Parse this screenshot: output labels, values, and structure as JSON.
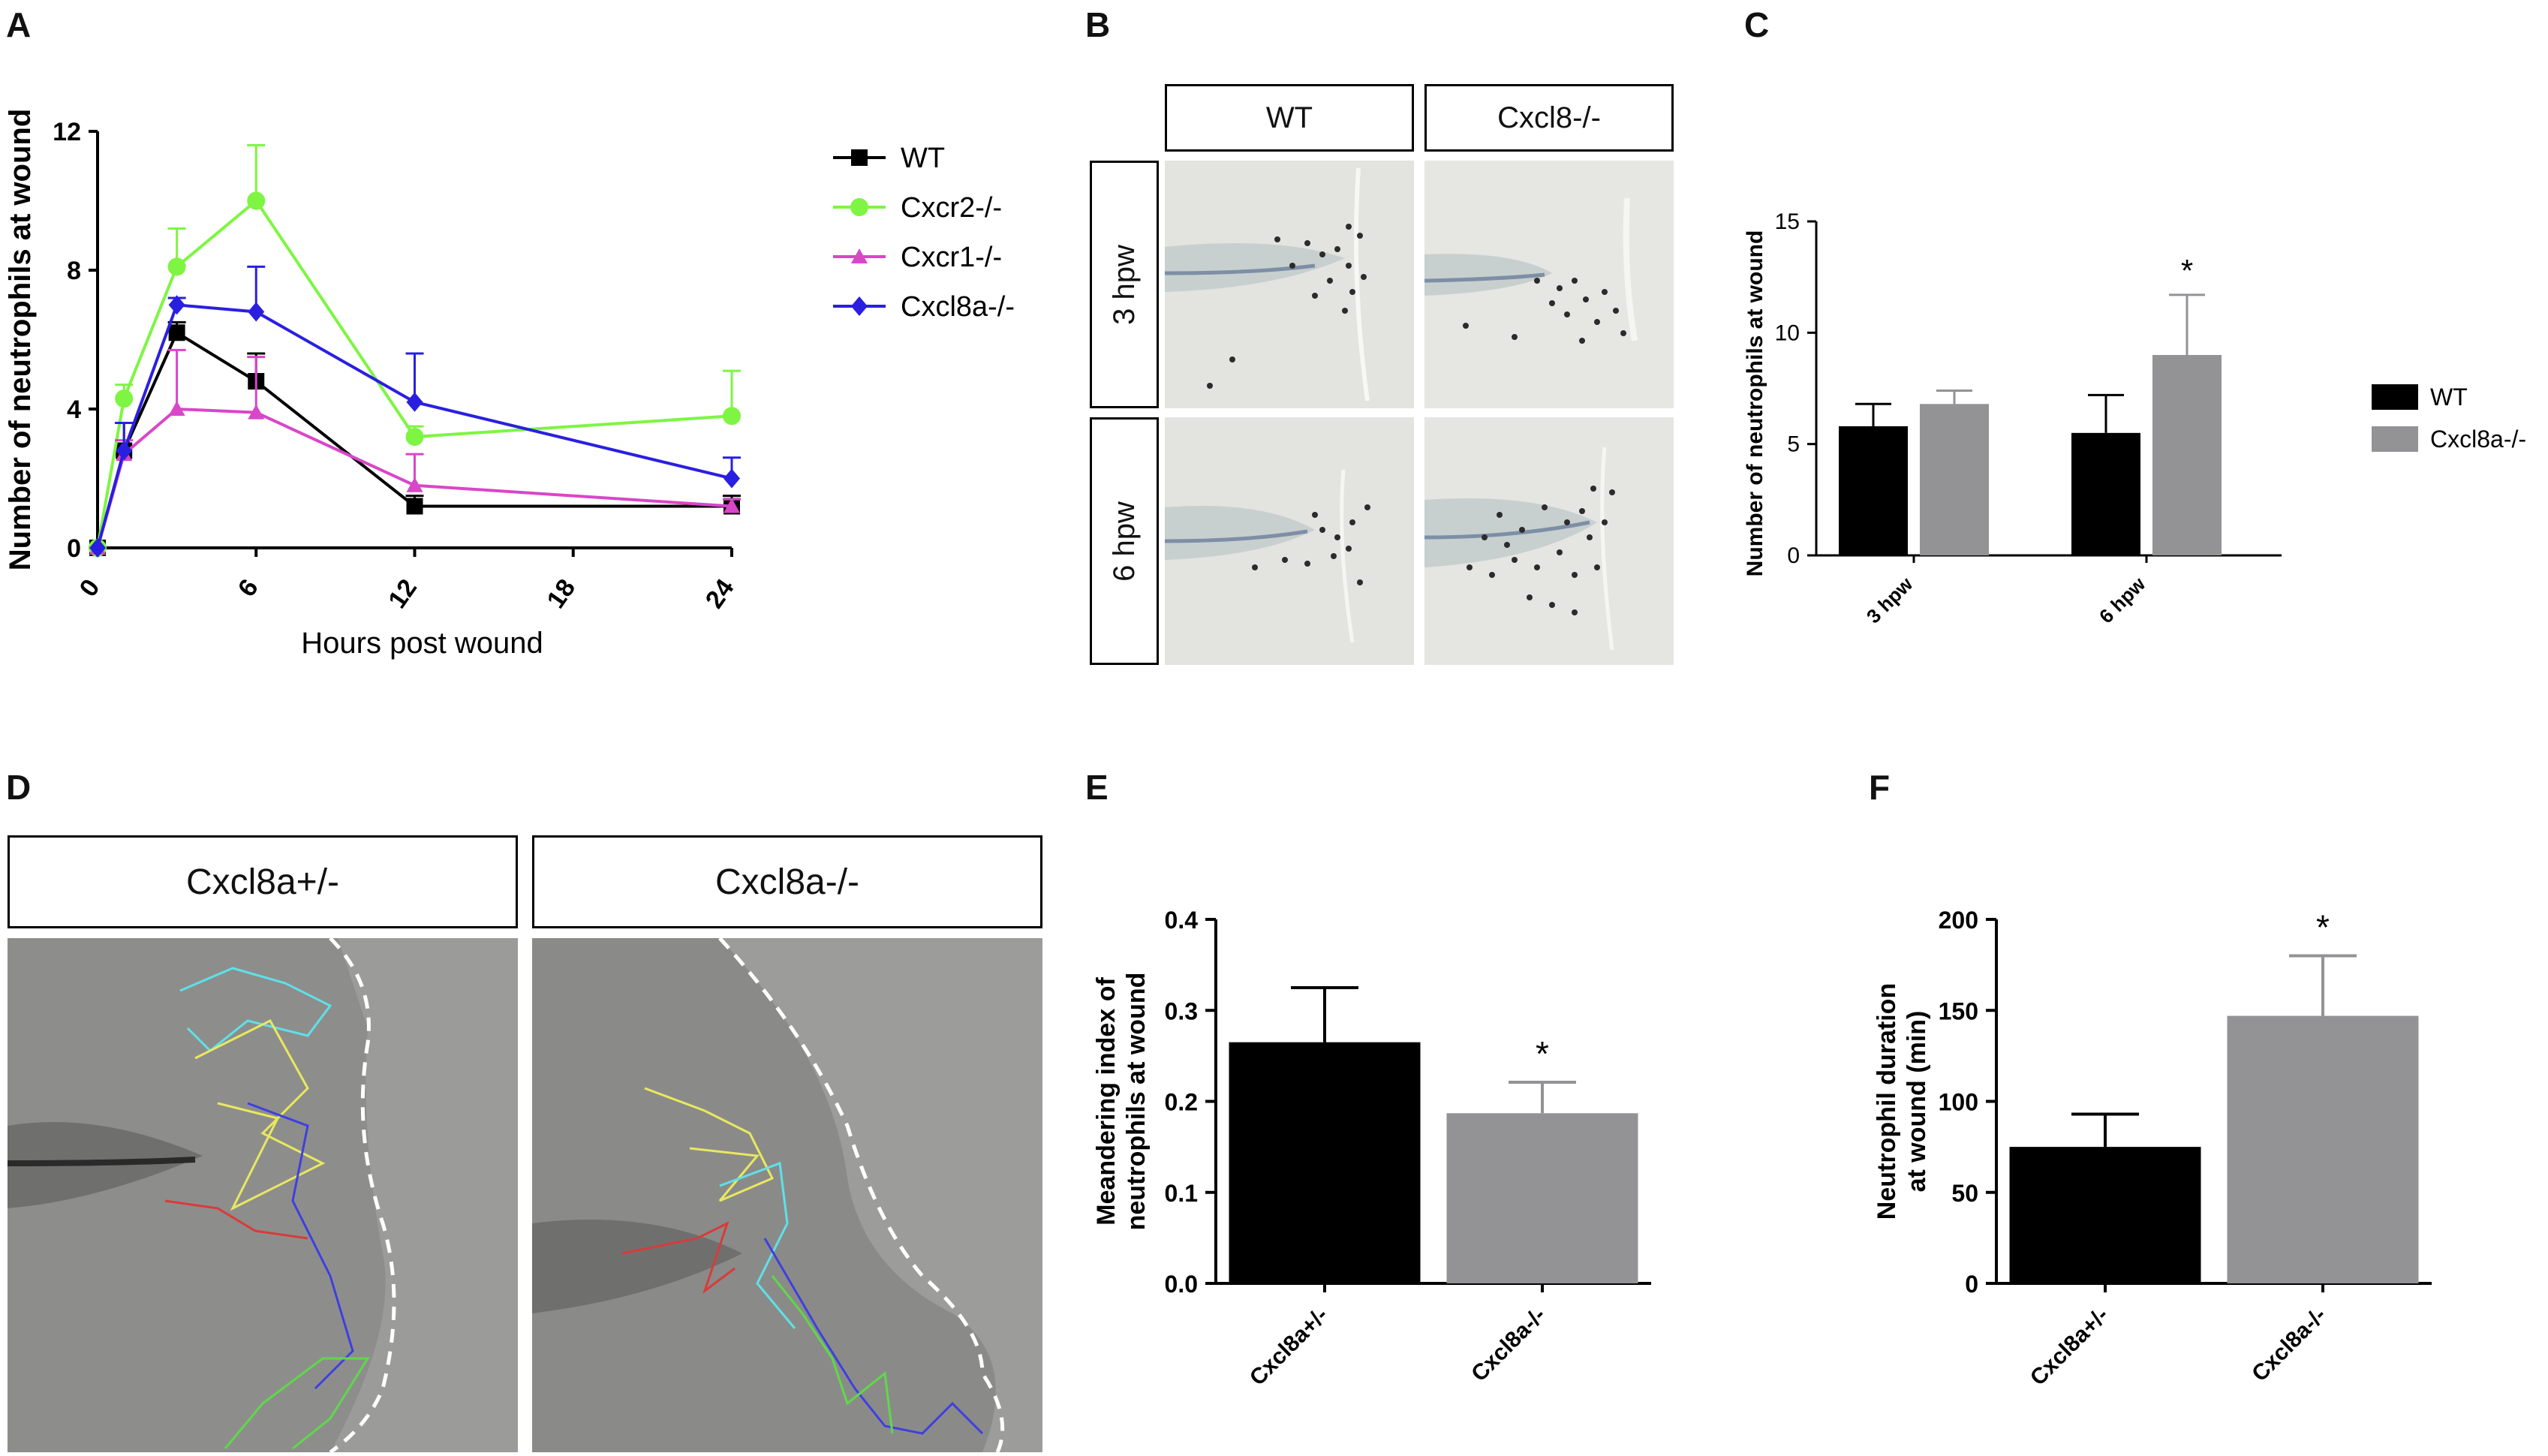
{
  "panel_labels": {
    "A": "A",
    "B": "B",
    "C": "C",
    "D": "D",
    "E": "E",
    "F": "F"
  },
  "panel_b": {
    "columns": [
      "WT",
      "Cxcl8-/-"
    ],
    "rows": [
      "3 hpw",
      "6 hpw"
    ]
  },
  "panel_d": {
    "columns": [
      "Cxcl8a+/-",
      "Cxcl8a-/-"
    ]
  },
  "colors": {
    "WT": "#000000",
    "Cxcr2": "#7ef542",
    "Cxcr1": "#d946c8",
    "Cxcl8a": "#2a1fe0",
    "bar_black": "#000000",
    "bar_grey": "#939396"
  },
  "chart_data": [
    {
      "id": "A",
      "type": "line",
      "xlabel": "Hours post wound",
      "ylabel": "Number of neutrophils at wound",
      "xlim": [
        0,
        24
      ],
      "ylim": [
        0,
        12
      ],
      "xticks": [
        "0",
        "6",
        "12",
        "18",
        "24"
      ],
      "yticks": [
        "0",
        "4",
        "8",
        "12"
      ],
      "legend_position": "right",
      "series": [
        {
          "name": "WT",
          "color": "#000000",
          "marker": "square",
          "x": [
            0,
            1,
            3,
            6,
            12,
            24
          ],
          "y": [
            0,
            2.8,
            6.2,
            4.8,
            1.2,
            1.2
          ],
          "err": [
            0,
            0.8,
            0.3,
            0.8,
            0.3,
            0.3
          ]
        },
        {
          "name": "Cxcr2-/-",
          "color": "#7ef542",
          "marker": "circle",
          "x": [
            0,
            1,
            3,
            6,
            12,
            24
          ],
          "y": [
            0,
            4.3,
            8.1,
            10.0,
            3.2,
            3.8
          ],
          "err": [
            0,
            0.4,
            1.1,
            1.6,
            0.3,
            1.3
          ]
        },
        {
          "name": "Cxcr1-/-",
          "color": "#d946c8",
          "marker": "triangle",
          "x": [
            0,
            1,
            3,
            6,
            12,
            24
          ],
          "y": [
            0,
            2.7,
            4.0,
            3.9,
            1.8,
            1.2
          ],
          "err": [
            0,
            0.4,
            1.7,
            1.6,
            0.9,
            0.2
          ]
        },
        {
          "name": "Cxcl8a-/-",
          "color": "#2a1fe0",
          "marker": "diamond",
          "x": [
            0,
            1,
            3,
            6,
            12,
            24
          ],
          "y": [
            0,
            2.8,
            7.0,
            6.8,
            4.2,
            2.0
          ],
          "err": [
            0,
            0.8,
            0.2,
            1.3,
            1.4,
            0.6
          ]
        }
      ]
    },
    {
      "id": "C",
      "type": "bar",
      "ylabel": "Number of neutrophils at wound",
      "ylim": [
        0,
        15
      ],
      "yticks": [
        "0",
        "5",
        "10",
        "15"
      ],
      "categories": [
        "3 hpw",
        "6 hpw"
      ],
      "legend_position": "right",
      "series": [
        {
          "name": "WT",
          "color": "#000000",
          "values": [
            5.8,
            5.5
          ],
          "err": [
            1.0,
            1.7
          ]
        },
        {
          "name": "Cxcl8a-/-",
          "color": "#939396",
          "values": [
            6.8,
            9.0
          ],
          "err": [
            0.6,
            2.7
          ]
        }
      ],
      "annotations": [
        {
          "category": "6 hpw",
          "text": "*"
        }
      ]
    },
    {
      "id": "E",
      "type": "bar",
      "ylabel_lines": [
        "Meandering index of",
        "neutrophils at wound"
      ],
      "ylim": [
        0,
        0.4
      ],
      "yticks": [
        "0.0",
        "0.1",
        "0.2",
        "0.3",
        "0.4"
      ],
      "categories": [
        "Cxcl8a+/-",
        "Cxcl8a-/-"
      ],
      "values": [
        0.265,
        0.187
      ],
      "err": [
        0.06,
        0.034
      ],
      "colors": [
        "#000000",
        "#939396"
      ],
      "annotations": [
        {
          "category": "Cxcl8a-/-",
          "text": "*"
        }
      ]
    },
    {
      "id": "F",
      "type": "bar",
      "ylabel_lines": [
        "Neutrophil duration",
        "at wound (min)"
      ],
      "ylim": [
        0,
        200
      ],
      "yticks": [
        "0",
        "50",
        "100",
        "150",
        "200"
      ],
      "categories": [
        "Cxcl8a+/-",
        "Cxcl8a-/-"
      ],
      "values": [
        75,
        147
      ],
      "err": [
        18,
        33
      ],
      "colors": [
        "#000000",
        "#939396"
      ],
      "annotations": [
        {
          "category": "Cxcl8a-/-",
          "text": "*"
        }
      ]
    }
  ]
}
